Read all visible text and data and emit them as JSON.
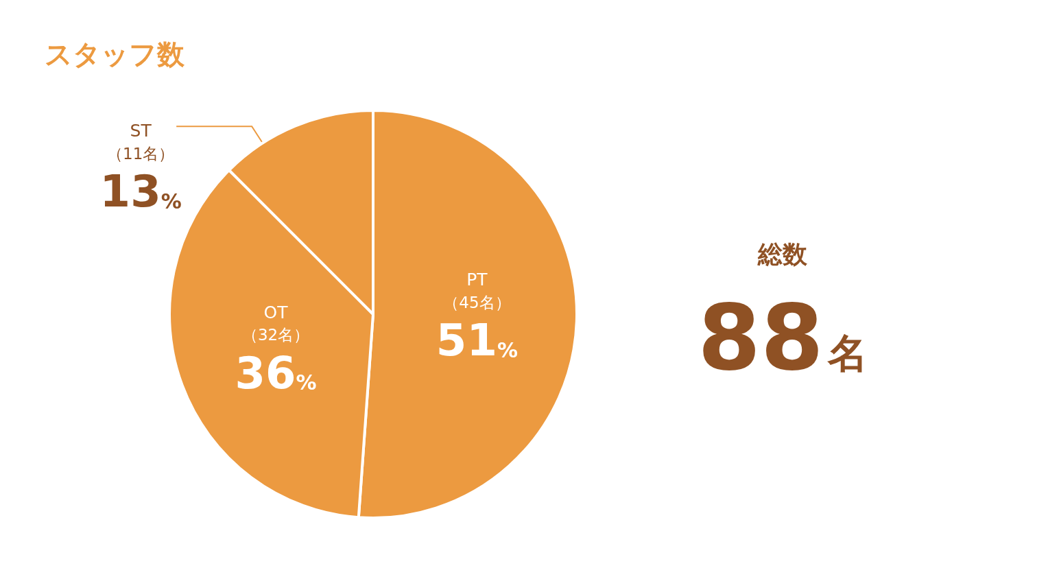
{
  "chart_data": {
    "type": "pie",
    "title": "スタッフ数",
    "categories": [
      "PT",
      "OT",
      "ST"
    ],
    "values": [
      45,
      32,
      11
    ],
    "colors": [
      "#ec9a40",
      "#ec9a40",
      "#ec9a40"
    ],
    "value_labels": [
      "（45名）\n51%",
      "（32名）\n36%",
      "（11名）\n13%"
    ],
    "annotations": [
      "総数",
      "88名"
    ]
  }
}
